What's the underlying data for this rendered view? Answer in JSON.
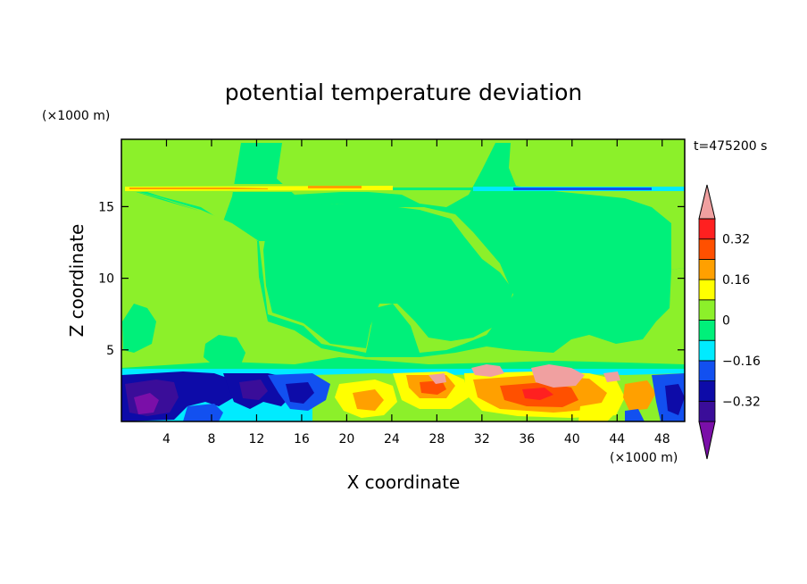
{
  "chart_data": {
    "type": "heatmap",
    "title": "potential temperature deviation",
    "xlabel": "X coordinate",
    "ylabel": "Z coordinate",
    "x_unit": "(×1000 m)",
    "y_unit": "(×1000 m)",
    "time_label": "t=475200 s",
    "xlim": [
      0,
      50
    ],
    "ylim": [
      0,
      19.7
    ],
    "x_ticks": [
      4,
      8,
      12,
      16,
      20,
      24,
      28,
      32,
      36,
      40,
      44,
      48
    ],
    "y_ticks": [
      5,
      10,
      15
    ],
    "colorbar": {
      "levels": [
        -0.4,
        -0.32,
        -0.24,
        -0.16,
        -0.08,
        0,
        0.08,
        0.16,
        0.24,
        0.32,
        0.4
      ],
      "labels": [
        "0.32",
        "0.16",
        "0",
        "−0.16",
        "−0.32"
      ],
      "label_values": [
        0.32,
        0.16,
        0,
        -0.16,
        -0.32
      ],
      "colors": [
        "#7a0fa8",
        "#3a0d99",
        "#0d0ba8",
        "#1250f0",
        "#00ebff",
        "#00f07a",
        "#8cf02a",
        "#ffff00",
        "#ffa000",
        "#ff5000",
        "#ff2020",
        "#f0a0a0"
      ],
      "background_color": "#00f07a",
      "upper_layer_color": "#8cf02a"
    }
  }
}
